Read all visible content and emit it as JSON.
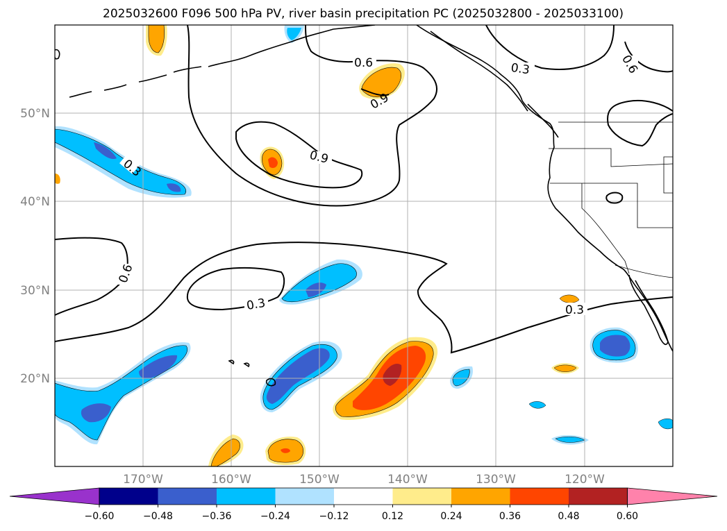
{
  "title": "2025032600 F096 500 hPa PV, river basin precipitation PC (2025032800 - 2025033100)",
  "lat_labels": [
    "50°N",
    "40°N",
    "30°N",
    "20°N"
  ],
  "lon_labels": [
    "170°W",
    "160°W",
    "150°W",
    "140°W",
    "130°W",
    "120°W"
  ],
  "contour_labels": [
    "0.3",
    "0.3",
    "0.3",
    "0.3",
    "0.6",
    "0.6",
    "0.6",
    "0.9",
    "0.9"
  ],
  "colorbar": {
    "ticks": [
      "−0.60",
      "−0.48",
      "−0.36",
      "−0.24",
      "−0.12",
      "0.12",
      "0.24",
      "0.36",
      "0.48",
      "0.60"
    ],
    "colors": [
      "#9932cc",
      "#00008b",
      "#3a5fcd",
      "#00bfff",
      "#b0e2ff",
      "#ffffff",
      "#ffec8b",
      "#ffa500",
      "#ff4500",
      "#b22222",
      "#ff82ab"
    ]
  }
}
